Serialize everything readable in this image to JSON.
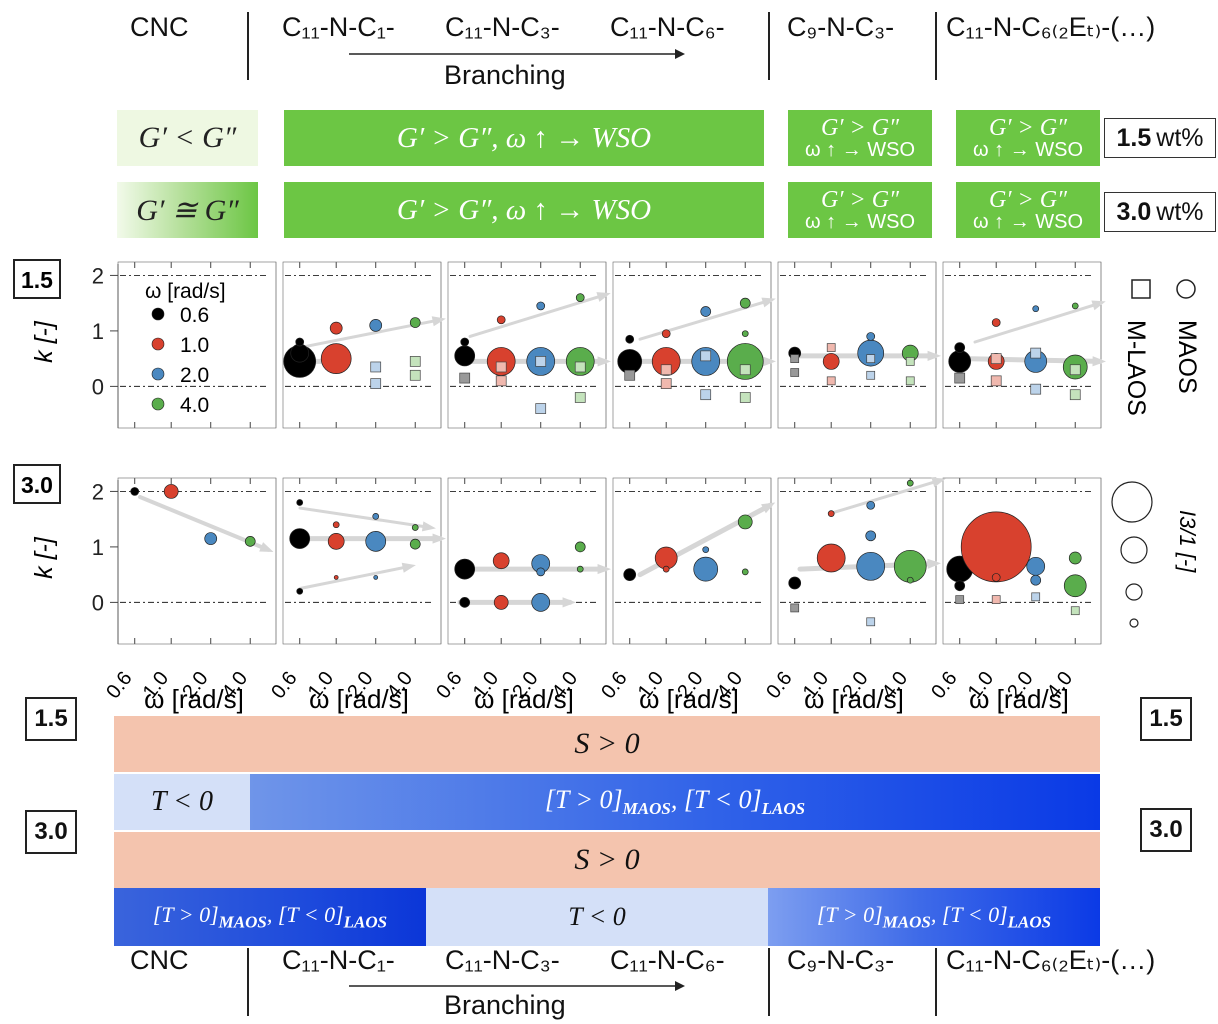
{
  "samples": [
    "CNC",
    "C₁₁-N-C₁-",
    "C₁₁-N-C₃-",
    "C₁₁-N-C₆-",
    "C₉-N-C₃-",
    "C₁₁-N-C₆₍₂Eₜ₎-(…)"
  ],
  "branching_label": "Branching",
  "row_15": {
    "conc_value": "1.5",
    "conc_unit": "wt%",
    "cnc": "G′ < G″",
    "wide": "G′ > G″, ω ↑ → WSO",
    "c9_line1": "G′ > G″",
    "c9_line2": "ω ↑ → WSO",
    "c11e_line1": "G′ > G″",
    "c11e_line2": "ω ↑ → WSO"
  },
  "row_30": {
    "conc_value": "3.0",
    "conc_unit": "wt%",
    "cnc": "G′ ≅ G″",
    "wide": "G′ > G″, ω ↑ → WSO",
    "c9_line1": "G′ > G″",
    "c9_line2": "ω ↑ → WSO",
    "c11e_line1": "G′ > G″",
    "c11e_line2": "ω ↑ → WSO"
  },
  "conc_labels": {
    "top": "1.5",
    "bottom": "3.0"
  },
  "legend": {
    "title": "ω  [rad/s]",
    "entries": [
      {
        "label": "0.6",
        "color": "#000000"
      },
      {
        "label": "1.0",
        "color": "#d8412e"
      },
      {
        "label": "2.0",
        "color": "#4a88c0"
      },
      {
        "label": "4.0",
        "color": "#5aad4c"
      }
    ],
    "maos": "MAOS",
    "mlaos": "M-LAOS",
    "size_label": "I3/1 [-]"
  },
  "bands": {
    "s1": "S > 0",
    "t_neg": "T < 0",
    "t_mixed": "[T > 0]MAOS, [T < 0]LAOS",
    "s2": "S > 0",
    "t_mixed_left": "[T > 0]MAOS, [T < 0]LAOS",
    "t_neg_center": "T < 0",
    "t_mixed_right": "[T > 0]MAOS, [T < 0]LAOS"
  },
  "chart_data": {
    "type": "scatter",
    "ylabel": "k [-]",
    "xlabel": "ω [rad/s]",
    "categories": [
      "0.6",
      "1.0",
      "2.0",
      "4.0"
    ],
    "yticks": [
      "0",
      "1",
      "2"
    ],
    "ylim": [
      -0.75,
      2.35
    ],
    "marker_meaning": {
      "circle": "MAOS",
      "square": "M-LAOS",
      "size": "I3/1"
    },
    "panels": [
      {
        "concentration": "1.5",
        "sample": "CNC",
        "points": []
      },
      {
        "concentration": "1.5",
        "sample": "C₁₁-N-C₁-",
        "points": [
          {
            "omega": "0.6",
            "marker": "circle",
            "k": 0.45,
            "size": 16
          },
          {
            "omega": "0.6",
            "marker": "circle",
            "k": 0.6,
            "size": 9
          },
          {
            "omega": "0.6",
            "marker": "circle",
            "k": 0.8,
            "size": 4
          },
          {
            "omega": "1.0",
            "marker": "circle",
            "k": 0.5,
            "size": 15
          },
          {
            "omega": "1.0",
            "marker": "circle",
            "k": 1.05,
            "size": 6
          },
          {
            "omega": "2.0",
            "marker": "circle",
            "k": 1.1,
            "size": 6
          },
          {
            "omega": "2.0",
            "marker": "square",
            "k": 0.35,
            "size": 5
          },
          {
            "omega": "2.0",
            "marker": "square",
            "k": 0.05,
            "size": 5
          },
          {
            "omega": "4.0",
            "marker": "circle",
            "k": 1.15,
            "size": 5
          },
          {
            "omega": "4.0",
            "marker": "square",
            "k": 0.45,
            "size": 5
          },
          {
            "omega": "4.0",
            "marker": "square",
            "k": 0.2,
            "size": 5
          }
        ]
      },
      {
        "concentration": "1.5",
        "sample": "C₁₁-N-C₃-",
        "points": [
          {
            "omega": "0.6",
            "marker": "circle",
            "k": 0.55,
            "size": 10
          },
          {
            "omega": "0.6",
            "marker": "circle",
            "k": 0.8,
            "size": 4
          },
          {
            "omega": "0.6",
            "marker": "square",
            "k": 0.15,
            "size": 5
          },
          {
            "omega": "1.0",
            "marker": "circle",
            "k": 0.45,
            "size": 14
          },
          {
            "omega": "1.0",
            "marker": "circle",
            "k": 1.2,
            "size": 4
          },
          {
            "omega": "1.0",
            "marker": "square",
            "k": 0.35,
            "size": 5
          },
          {
            "omega": "1.0",
            "marker": "square",
            "k": 0.1,
            "size": 5
          },
          {
            "omega": "2.0",
            "marker": "circle",
            "k": 0.45,
            "size": 14
          },
          {
            "omega": "2.0",
            "marker": "circle",
            "k": 1.45,
            "size": 4
          },
          {
            "omega": "2.0",
            "marker": "square",
            "k": 0.45,
            "size": 5
          },
          {
            "omega": "2.0",
            "marker": "square",
            "k": -0.4,
            "size": 5
          },
          {
            "omega": "4.0",
            "marker": "circle",
            "k": 0.45,
            "size": 14
          },
          {
            "omega": "4.0",
            "marker": "circle",
            "k": 1.6,
            "size": 4
          },
          {
            "omega": "4.0",
            "marker": "square",
            "k": 0.35,
            "size": 5
          },
          {
            "omega": "4.0",
            "marker": "square",
            "k": -0.2,
            "size": 5
          }
        ]
      },
      {
        "concentration": "1.5",
        "sample": "C₁₁-N-C₆-",
        "points": [
          {
            "omega": "0.6",
            "marker": "circle",
            "k": 0.45,
            "size": 12
          },
          {
            "omega": "0.6",
            "marker": "circle",
            "k": 0.85,
            "size": 4
          },
          {
            "omega": "0.6",
            "marker": "square",
            "k": 0.2,
            "size": 5
          },
          {
            "omega": "1.0",
            "marker": "circle",
            "k": 0.45,
            "size": 14
          },
          {
            "omega": "1.0",
            "marker": "circle",
            "k": 0.95,
            "size": 4
          },
          {
            "omega": "1.0",
            "marker": "square",
            "k": 0.3,
            "size": 5
          },
          {
            "omega": "1.0",
            "marker": "square",
            "k": 0.05,
            "size": 5
          },
          {
            "omega": "2.0",
            "marker": "circle",
            "k": 0.45,
            "size": 14
          },
          {
            "omega": "2.0",
            "marker": "circle",
            "k": 1.35,
            "size": 5
          },
          {
            "omega": "2.0",
            "marker": "square",
            "k": 0.55,
            "size": 5
          },
          {
            "omega": "2.0",
            "marker": "square",
            "k": -0.15,
            "size": 5
          },
          {
            "omega": "4.0",
            "marker": "circle",
            "k": 0.45,
            "size": 18
          },
          {
            "omega": "4.0",
            "marker": "circle",
            "k": 1.5,
            "size": 5
          },
          {
            "omega": "4.0",
            "marker": "circle",
            "k": 0.95,
            "size": 3
          },
          {
            "omega": "4.0",
            "marker": "square",
            "k": 0.3,
            "size": 5
          },
          {
            "omega": "4.0",
            "marker": "square",
            "k": -0.2,
            "size": 5
          }
        ]
      },
      {
        "concentration": "1.5",
        "sample": "C₉-N-C₃-",
        "points": [
          {
            "omega": "0.6",
            "marker": "circle",
            "k": 0.6,
            "size": 6
          },
          {
            "omega": "0.6",
            "marker": "square",
            "k": 0.5,
            "size": 4
          },
          {
            "omega": "0.6",
            "marker": "square",
            "k": 0.25,
            "size": 4
          },
          {
            "omega": "1.0",
            "marker": "circle",
            "k": 0.45,
            "size": 8
          },
          {
            "omega": "1.0",
            "marker": "square",
            "k": 0.7,
            "size": 4
          },
          {
            "omega": "1.0",
            "marker": "square",
            "k": 0.1,
            "size": 4
          },
          {
            "omega": "2.0",
            "marker": "circle",
            "k": 0.6,
            "size": 13
          },
          {
            "omega": "2.0",
            "marker": "circle",
            "k": 0.9,
            "size": 4
          },
          {
            "omega": "2.0",
            "marker": "square",
            "k": 0.5,
            "size": 4
          },
          {
            "omega": "2.0",
            "marker": "square",
            "k": 0.2,
            "size": 4
          },
          {
            "omega": "4.0",
            "marker": "circle",
            "k": 0.6,
            "size": 8
          },
          {
            "omega": "4.0",
            "marker": "square",
            "k": 0.45,
            "size": 4
          },
          {
            "omega": "4.0",
            "marker": "square",
            "k": 0.1,
            "size": 4
          }
        ]
      },
      {
        "concentration": "1.5",
        "sample": "C₁₁-N-C₆₍₂Eₜ₎-(…)",
        "points": [
          {
            "omega": "0.6",
            "marker": "circle",
            "k": 0.45,
            "size": 11
          },
          {
            "omega": "0.6",
            "marker": "circle",
            "k": 0.7,
            "size": 5
          },
          {
            "omega": "0.6",
            "marker": "square",
            "k": 0.15,
            "size": 5
          },
          {
            "omega": "1.0",
            "marker": "circle",
            "k": 0.45,
            "size": 8
          },
          {
            "omega": "1.0",
            "marker": "circle",
            "k": 1.15,
            "size": 4
          },
          {
            "omega": "1.0",
            "marker": "square",
            "k": 0.5,
            "size": 5
          },
          {
            "omega": "1.0",
            "marker": "square",
            "k": 0.1,
            "size": 5
          },
          {
            "omega": "2.0",
            "marker": "circle",
            "k": 0.45,
            "size": 11
          },
          {
            "omega": "2.0",
            "marker": "circle",
            "k": 1.4,
            "size": 3
          },
          {
            "omega": "2.0",
            "marker": "square",
            "k": 0.6,
            "size": 5
          },
          {
            "omega": "2.0",
            "marker": "square",
            "k": -0.05,
            "size": 5
          },
          {
            "omega": "4.0",
            "marker": "circle",
            "k": 0.35,
            "size": 12
          },
          {
            "omega": "4.0",
            "marker": "circle",
            "k": 1.45,
            "size": 3
          },
          {
            "omega": "4.0",
            "marker": "square",
            "k": 0.3,
            "size": 5
          },
          {
            "omega": "4.0",
            "marker": "square",
            "k": -0.15,
            "size": 5
          }
        ]
      },
      {
        "concentration": "3.0",
        "sample": "CNC",
        "points": [
          {
            "omega": "0.6",
            "marker": "circle",
            "k": 2.0,
            "size": 4
          },
          {
            "omega": "1.0",
            "marker": "circle",
            "k": 2.0,
            "size": 7
          },
          {
            "omega": "2.0",
            "marker": "circle",
            "k": 1.15,
            "size": 6
          },
          {
            "omega": "4.0",
            "marker": "circle",
            "k": 1.1,
            "size": 5
          }
        ]
      },
      {
        "concentration": "3.0",
        "sample": "C₁₁-N-C₁-",
        "points": [
          {
            "omega": "0.6",
            "marker": "circle",
            "k": 1.15,
            "size": 10
          },
          {
            "omega": "0.6",
            "marker": "circle",
            "k": 1.8,
            "size": 3
          },
          {
            "omega": "0.6",
            "marker": "circle",
            "k": 0.2,
            "size": 3
          },
          {
            "omega": "1.0",
            "marker": "circle",
            "k": 1.1,
            "size": 8
          },
          {
            "omega": "1.0",
            "marker": "circle",
            "k": 1.4,
            "size": 3
          },
          {
            "omega": "1.0",
            "marker": "circle",
            "k": 0.45,
            "size": 2
          },
          {
            "omega": "2.0",
            "marker": "circle",
            "k": 1.1,
            "size": 10
          },
          {
            "omega": "2.0",
            "marker": "circle",
            "k": 1.55,
            "size": 3
          },
          {
            "omega": "2.0",
            "marker": "circle",
            "k": 0.45,
            "size": 2
          },
          {
            "omega": "4.0",
            "marker": "circle",
            "k": 1.05,
            "size": 5
          },
          {
            "omega": "4.0",
            "marker": "circle",
            "k": 1.35,
            "size": 3
          }
        ]
      },
      {
        "concentration": "3.0",
        "sample": "C₁₁-N-C₃-",
        "points": [
          {
            "omega": "0.6",
            "marker": "circle",
            "k": 0.6,
            "size": 10
          },
          {
            "omega": "0.6",
            "marker": "circle",
            "k": 0.0,
            "size": 5
          },
          {
            "omega": "1.0",
            "marker": "circle",
            "k": 0.75,
            "size": 8
          },
          {
            "omega": "1.0",
            "marker": "circle",
            "k": 0.0,
            "size": 7
          },
          {
            "omega": "2.0",
            "marker": "circle",
            "k": 0.7,
            "size": 9
          },
          {
            "omega": "2.0",
            "marker": "circle",
            "k": 0.55,
            "size": 4
          },
          {
            "omega": "2.0",
            "marker": "circle",
            "k": 0.0,
            "size": 9
          },
          {
            "omega": "4.0",
            "marker": "circle",
            "k": 1.0,
            "size": 5
          },
          {
            "omega": "4.0",
            "marker": "circle",
            "k": 0.6,
            "size": 3
          }
        ]
      },
      {
        "concentration": "3.0",
        "sample": "C₁₁-N-C₆-",
        "points": [
          {
            "omega": "0.6",
            "marker": "circle",
            "k": 0.5,
            "size": 6
          },
          {
            "omega": "1.0",
            "marker": "circle",
            "k": 0.8,
            "size": 11
          },
          {
            "omega": "1.0",
            "marker": "circle",
            "k": 0.6,
            "size": 3
          },
          {
            "omega": "2.0",
            "marker": "circle",
            "k": 0.6,
            "size": 12
          },
          {
            "omega": "2.0",
            "marker": "circle",
            "k": 0.95,
            "size": 3
          },
          {
            "omega": "4.0",
            "marker": "circle",
            "k": 1.45,
            "size": 7
          },
          {
            "omega": "4.0",
            "marker": "circle",
            "k": 0.55,
            "size": 3
          }
        ]
      },
      {
        "concentration": "3.0",
        "sample": "C₉-N-C₃-",
        "points": [
          {
            "omega": "0.6",
            "marker": "circle",
            "k": 0.35,
            "size": 6
          },
          {
            "omega": "0.6",
            "marker": "square",
            "k": -0.1,
            "size": 4
          },
          {
            "omega": "1.0",
            "marker": "circle",
            "k": 0.8,
            "size": 14
          },
          {
            "omega": "1.0",
            "marker": "circle",
            "k": 1.6,
            "size": 3
          },
          {
            "omega": "2.0",
            "marker": "circle",
            "k": 0.65,
            "size": 14
          },
          {
            "omega": "2.0",
            "marker": "circle",
            "k": 1.2,
            "size": 5
          },
          {
            "omega": "2.0",
            "marker": "circle",
            "k": 1.75,
            "size": 4
          },
          {
            "omega": "2.0",
            "marker": "square",
            "k": -0.35,
            "size": 4
          },
          {
            "omega": "4.0",
            "marker": "circle",
            "k": 0.65,
            "size": 16
          },
          {
            "omega": "4.0",
            "marker": "circle",
            "k": 0.4,
            "size": 3
          },
          {
            "omega": "4.0",
            "marker": "circle",
            "k": 2.15,
            "size": 3
          }
        ]
      },
      {
        "concentration": "3.0",
        "sample": "C₁₁-N-C₆₍₂Eₜ₎-(…)",
        "points": [
          {
            "omega": "0.6",
            "marker": "circle",
            "k": 0.6,
            "size": 13
          },
          {
            "omega": "0.6",
            "marker": "circle",
            "k": 0.3,
            "size": 5
          },
          {
            "omega": "0.6",
            "marker": "square",
            "k": 0.05,
            "size": 4
          },
          {
            "omega": "1.0",
            "marker": "circle",
            "k": 1.0,
            "size": 35
          },
          {
            "omega": "1.0",
            "marker": "circle",
            "k": 0.45,
            "size": 4
          },
          {
            "omega": "1.0",
            "marker": "square",
            "k": 0.05,
            "size": 4
          },
          {
            "omega": "2.0",
            "marker": "circle",
            "k": 0.65,
            "size": 9
          },
          {
            "omega": "2.0",
            "marker": "circle",
            "k": 0.4,
            "size": 5
          },
          {
            "omega": "2.0",
            "marker": "square",
            "k": 0.1,
            "size": 4
          },
          {
            "omega": "4.0",
            "marker": "circle",
            "k": 0.8,
            "size": 6
          },
          {
            "omega": "4.0",
            "marker": "circle",
            "k": 0.3,
            "size": 11
          },
          {
            "omega": "4.0",
            "marker": "square",
            "k": -0.15,
            "size": 4
          }
        ]
      }
    ]
  }
}
